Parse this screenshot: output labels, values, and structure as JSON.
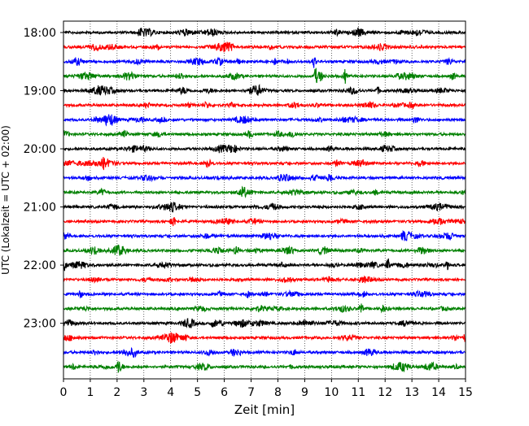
{
  "chart_data": {
    "type": "line",
    "title": "",
    "xlabel": "Zeit  [min]",
    "ylabel": "UTC (Lokalzeit = UTC + 02:00)",
    "xlim": [
      0,
      15
    ],
    "x_ticks": [
      "0",
      "1",
      "2",
      "3",
      "4",
      "5",
      "6",
      "7",
      "8",
      "9",
      "10",
      "11",
      "12",
      "13",
      "14",
      "15"
    ],
    "y_tick_labels": [
      "18:00",
      "19:00",
      "20:00",
      "21:00",
      "22:00",
      "23:00"
    ],
    "grid": "vertical dotted",
    "trace_count": 24,
    "trace_start_time": "18:00",
    "trace_interval_minutes": 15,
    "trace_colors": [
      "#000000",
      "#ff0000",
      "#0000ff",
      "#008000"
    ],
    "notable_bursts": [
      {
        "trace": 2,
        "minute": 9.35
      },
      {
        "trace": 3,
        "minute": 9.4
      },
      {
        "trace": 3,
        "minute": 10.5
      },
      {
        "trace": 16,
        "minute": 0.05
      },
      {
        "trace": 16,
        "minute": 12.1
      },
      {
        "trace": 16,
        "minute": 14.3
      },
      {
        "trace": 19,
        "minute": 11.1
      },
      {
        "trace": 23,
        "minute": 2.05
      }
    ]
  }
}
